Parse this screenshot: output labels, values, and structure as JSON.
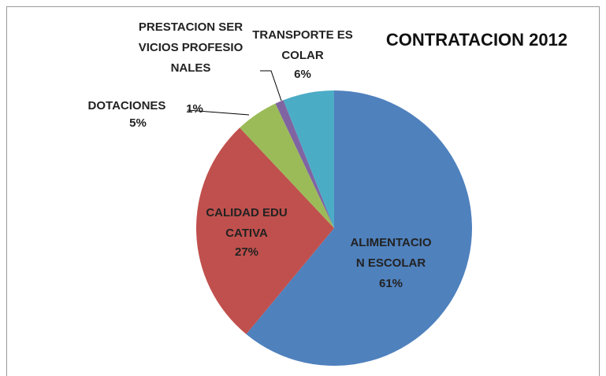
{
  "chart_data": {
    "type": "pie",
    "title": "CONTRATACION 2012",
    "categories": [
      "ALIMENTACION ESCOLAR",
      "CALIDAD EDUCATIVA",
      "DOTACIONES",
      "PRESTACION SERVICIOS PROFESIONALES",
      "TRANSPORTE ESCOLAR"
    ],
    "values": [
      61,
      27,
      5,
      1,
      6
    ],
    "value_labels": [
      "61%",
      "27%",
      "5%",
      "1%",
      "6%"
    ],
    "colors": [
      "#4f81bd",
      "#c0504d",
      "#9bbb59",
      "#8064a2",
      "#4bacc6"
    ]
  }
}
